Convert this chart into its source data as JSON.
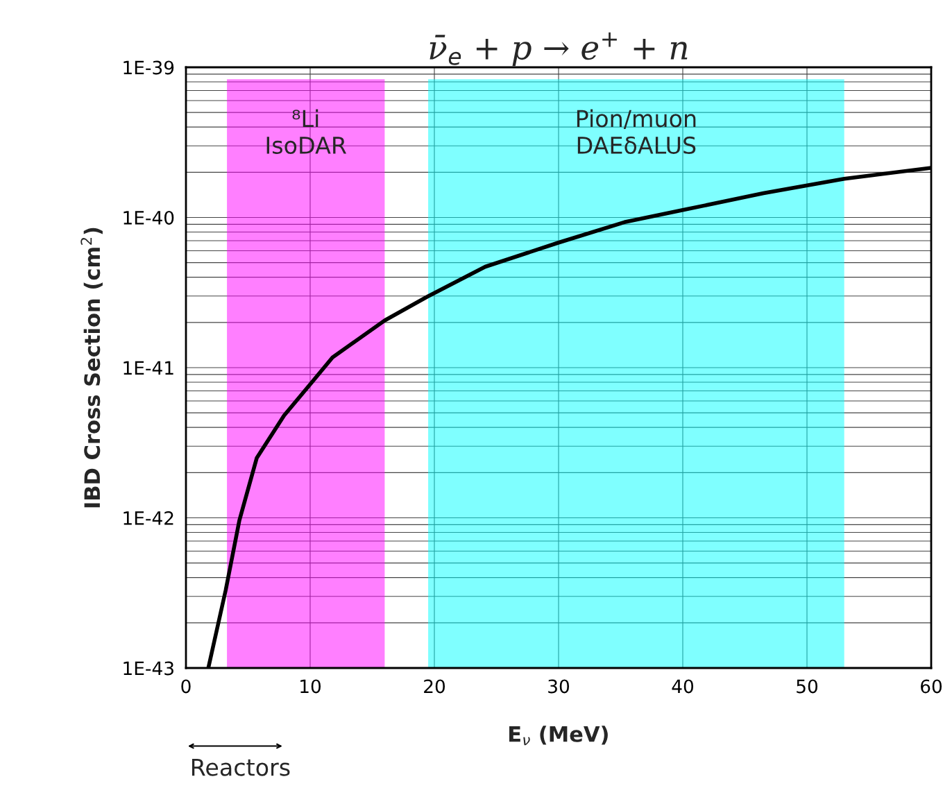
{
  "chart_data": {
    "type": "line",
    "title": "ν̄$_{e}$ + p → e$^{+}$ + n",
    "xlabel": "E$_{ν}$ (MeV)",
    "ylabel": "IBD Cross Section (cm$^{2}$)",
    "x": [
      1.8,
      3.2,
      4.3,
      5.7,
      7.9,
      10.2,
      11.8,
      16.0,
      19.4,
      24.1,
      30,
      35.3,
      40,
      46.5,
      53,
      60
    ],
    "series": [
      {
        "color": "#000000",
        "values": [
          1e-43,
          3.3e-43,
          9.6e-43,
          2.5e-42,
          4.8e-42,
          8.1e-42,
          1.17e-41,
          2.06e-41,
          2.96e-41,
          4.7e-41,
          6.8e-41,
          9.3e-41,
          1.12e-40,
          1.45e-40,
          1.81e-40,
          2.14e-40
        ]
      }
    ],
    "log": "y",
    "xlim": [
      0,
      60
    ],
    "xticks": [
      0,
      10,
      20,
      30,
      40,
      50,
      60
    ],
    "ylim": [
      1e-43,
      1e-39
    ],
    "yticks": [
      {
        "value": 1e-43,
        "label": "1E-43"
      },
      {
        "value": 1e-42,
        "label": "1E-42"
      },
      {
        "value": 1e-41,
        "label": "1E-41"
      },
      {
        "value": 1e-40,
        "label": "1E-40"
      },
      {
        "value": 1e-39,
        "label": "1E-39"
      }
    ],
    "grid": true,
    "marker": "none",
    "line_style": "solid",
    "bands": [
      {
        "axis": "x",
        "from": 3.3,
        "to": 16.0,
        "label": "⁸Li\nIsoDAR",
        "color": "#ff00ff"
      },
      {
        "axis": "x",
        "from": 19.5,
        "to": 53.0,
        "label": "Pion/muon\nDAEδALUS",
        "color": "#00ffff"
      }
    ],
    "annotations": [
      "Reactors"
    ]
  }
}
